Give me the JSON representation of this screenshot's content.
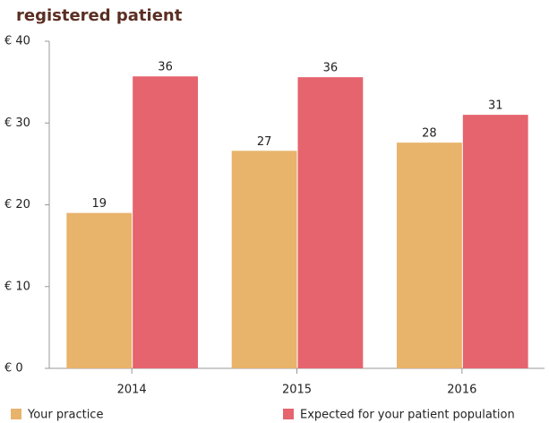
{
  "chart_data": {
    "type": "bar",
    "title": "registered patient",
    "categories": [
      "2014",
      "2015",
      "2016"
    ],
    "series": [
      {
        "name": "Your practice",
        "color": "#e8b36a",
        "values": [
          19,
          26.6,
          27.6
        ],
        "value_labels": [
          "19",
          "27",
          "28"
        ]
      },
      {
        "name": "Expected for your patient population",
        "color": "#e5646e",
        "values": [
          35.7,
          35.6,
          31
        ],
        "value_labels": [
          "36",
          "36",
          "31"
        ]
      }
    ],
    "ylim": [
      0,
      40
    ],
    "yticks": [
      {
        "value": 0,
        "label": "€ 0"
      },
      {
        "value": 10,
        "label": "€ 10"
      },
      {
        "value": 20,
        "label": "€ 20"
      },
      {
        "value": 30,
        "label": "€ 30"
      },
      {
        "value": 40,
        "label": "€ 40"
      }
    ],
    "grid": false,
    "legend": "bottom"
  }
}
